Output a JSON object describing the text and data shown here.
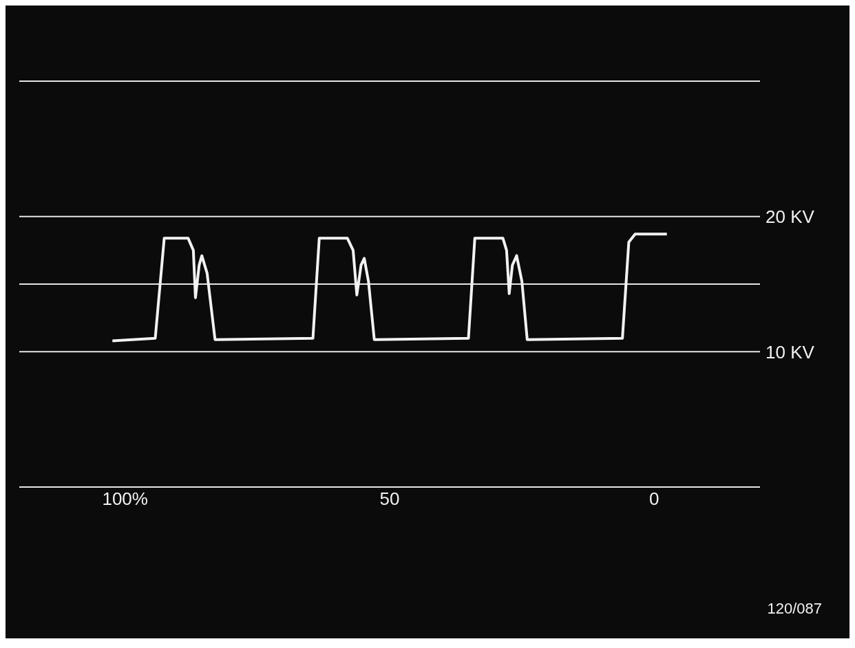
{
  "chart_data": {
    "type": "line",
    "x": [
      102.4,
      94.3,
      92.6,
      88.1,
      87.1,
      86.7,
      86.0,
      85.5,
      84.5,
      83.0,
      64.5,
      63.3,
      58.0,
      56.9,
      56.2,
      55.4,
      54.8,
      54.0,
      52.9,
      35.1,
      33.9,
      28.6,
      27.9,
      27.4,
      26.8,
      26.0,
      25.0,
      24.0,
      6.0,
      4.8,
      3.6,
      -2.4
    ],
    "series": [
      {
        "color": "#f2f2f2",
        "values": [
          10.8,
          11.0,
          18.4,
          18.4,
          17.5,
          14.0,
          16.4,
          17.1,
          15.8,
          10.9,
          11.0,
          18.4,
          18.4,
          17.5,
          14.2,
          16.4,
          16.9,
          15.2,
          10.9,
          11.0,
          18.4,
          18.4,
          17.5,
          14.3,
          16.4,
          17.1,
          15.2,
          10.9,
          11.0,
          18.1,
          18.7,
          18.7
        ]
      }
    ],
    "xlim": [
      120,
      -20
    ],
    "xticks": [
      {
        "value": 100,
        "label": "100%"
      },
      50,
      0
    ],
    "ylim": [
      0,
      30
    ],
    "yticks": [
      {
        "value": 0,
        "label": null
      },
      {
        "value": 10,
        "label": "10 KV"
      },
      {
        "value": 15,
        "label": null
      },
      {
        "value": 20,
        "label": "20 KV"
      },
      {
        "value": 30,
        "label": null
      }
    ],
    "grid": "y",
    "marker": "none",
    "line_style": "solid",
    "annotations": [
      "120/087"
    ]
  }
}
